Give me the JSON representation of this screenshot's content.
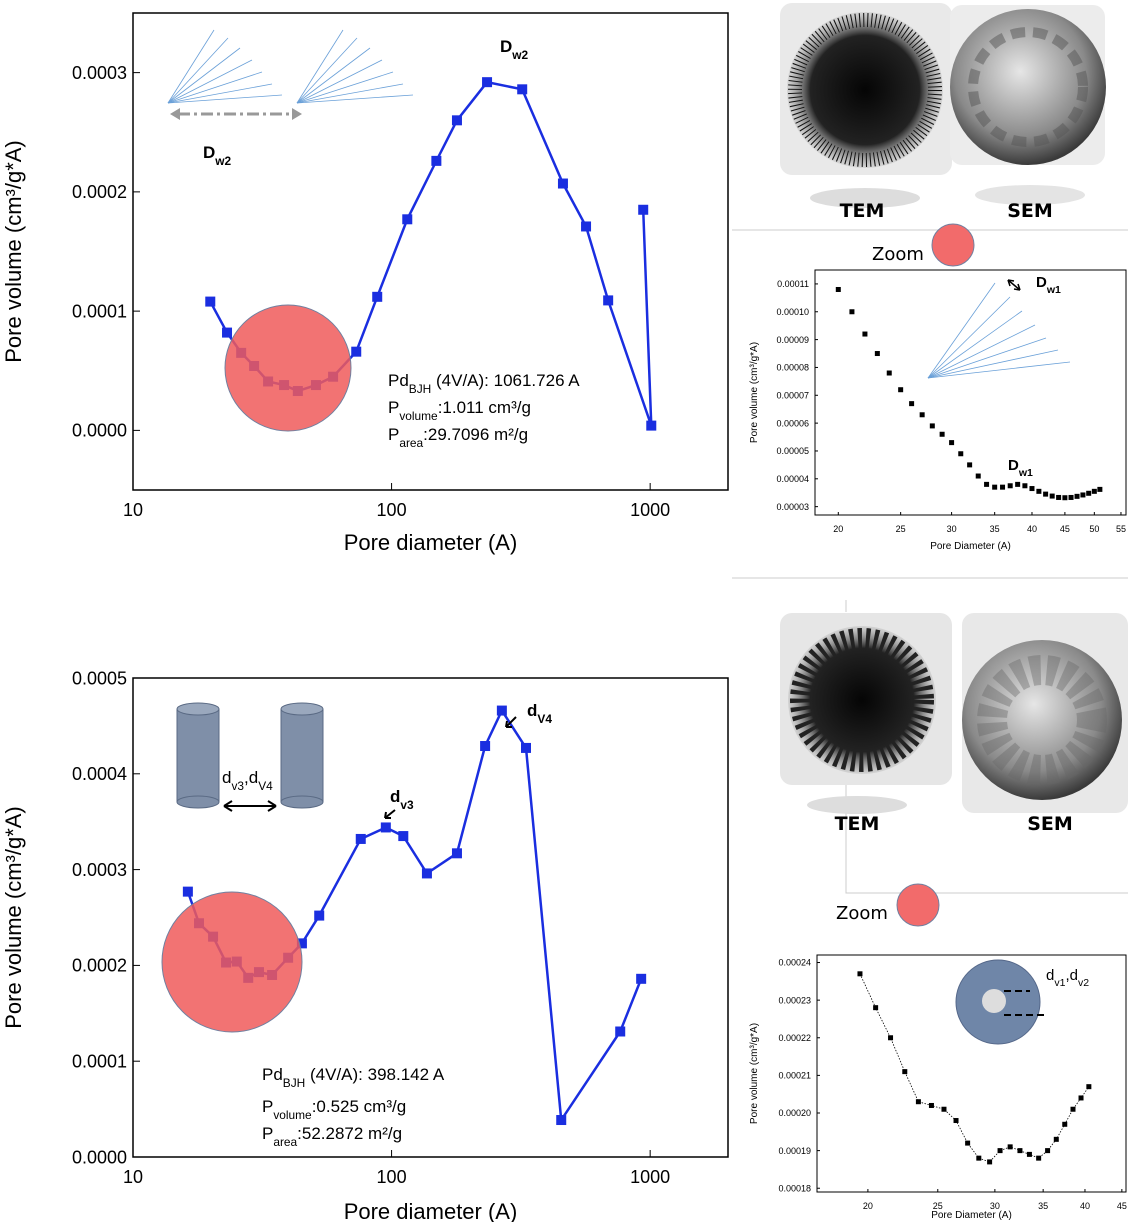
{
  "chart_data": [
    {
      "type": "line",
      "xscale": "log",
      "color": "#1a2ee0",
      "marker": "square",
      "x_label": "Pore diameter (A)",
      "y_label": "Pore volume (cm³/g*A)",
      "x": [
        19.9,
        23.1,
        26.2,
        29.4,
        33.3,
        38.4,
        43.4,
        51,
        59.4,
        73,
        88,
        115,
        149,
        179,
        234,
        320,
        460,
        565,
        688,
        1010,
        940
      ],
      "values": [
        0.000108,
        8.2e-05,
        6.5e-05,
        5.4e-05,
        4.1e-05,
        3.8e-05,
        3.3e-05,
        3.8e-05,
        4.5e-05,
        6.6e-05,
        0.000112,
        0.000177,
        0.000226,
        0.00026,
        0.000292,
        0.000286,
        0.000207,
        0.000171,
        0.000109,
        4e-06,
        0.000185
      ],
      "xlim": [
        10,
        2000
      ],
      "ylim": [
        -5e-05,
        0.00035
      ],
      "xticks": [
        10,
        100,
        1000
      ],
      "yticks": [
        {
          "value": 0,
          "label": "0.0000"
        },
        {
          "value": 0.0001,
          "label": "0.0001"
        },
        {
          "value": 0.0002,
          "label": "0.0002"
        },
        {
          "value": 0.0003,
          "label": "0.0003"
        }
      ],
      "annotations": [
        {
          "bold": true,
          "segments": [
            {
              "t": "D"
            },
            {
              "t": "w2",
              "sub": true
            }
          ]
        },
        {
          "bold": true,
          "segments": [
            {
              "t": "D"
            },
            {
              "t": "w2",
              "sub": true
            }
          ]
        },
        {
          "segments": [
            {
              "t": "Pd"
            },
            {
              "t": "BJH",
              "sub": true
            },
            {
              "t": " (4V/A): 1061.726 A"
            }
          ]
        },
        {
          "segments": [
            {
              "t": "P"
            },
            {
              "t": "volume",
              "sub": true
            },
            {
              "t": ":1.011 cm³/g"
            }
          ]
        },
        {
          "segments": [
            {
              "t": "P"
            },
            {
              "t": "area",
              "sub": true
            },
            {
              "t": ":29.7096 m²/g"
            }
          ]
        }
      ]
    },
    {
      "type": "line",
      "xscale": "log",
      "color": "#1a2ee0",
      "marker": "square",
      "x_label": "Pore diameter (A)",
      "y_label": "Pore volume (cm³/g*A)",
      "x": [
        16.3,
        18,
        20.4,
        22.9,
        25.2,
        27.9,
        30.7,
        34.5,
        39.8,
        45,
        52.5,
        76,
        95,
        111,
        137,
        179,
        230,
        267,
        331,
        453,
        766,
        923
      ],
      "values": [
        0.000277,
        0.000244,
        0.00023,
        0.000203,
        0.000204,
        0.000187,
        0.000193,
        0.00019,
        0.000208,
        0.000223,
        0.000252,
        0.000332,
        0.000344,
        0.000335,
        0.000296,
        0.000317,
        0.000429,
        0.000466,
        0.000427,
        3.86e-05,
        0.000131,
        0.000186
      ],
      "xlim": [
        10,
        2000
      ],
      "ylim": [
        0,
        0.0005
      ],
      "xticks": [
        10,
        100,
        1000
      ],
      "yticks": [
        {
          "value": 0,
          "label": "0.0000"
        },
        {
          "value": 0.0001,
          "label": "0.0001"
        },
        {
          "value": 0.0002,
          "label": "0.0002"
        },
        {
          "value": 0.0003,
          "label": "0.0003"
        },
        {
          "value": 0.0004,
          "label": "0.0004"
        },
        {
          "value": 0.0005,
          "label": "0.0005"
        }
      ],
      "annotations": [
        {
          "segments": [
            {
              "t": "d"
            },
            {
              "t": "v3",
              "sub": true
            },
            {
              "t": ",d"
            },
            {
              "t": "V4",
              "sub": true
            }
          ]
        },
        {
          "bold": true,
          "segments": [
            {
              "t": "d"
            },
            {
              "t": "v3",
              "sub": true
            }
          ]
        },
        {
          "bold": true,
          "segments": [
            {
              "t": "d"
            },
            {
              "t": "V4",
              "sub": true
            }
          ]
        },
        {
          "segments": [
            {
              "t": "Pd"
            },
            {
              "t": "BJH",
              "sub": true
            },
            {
              "t": " (4V/A): 398.142 A"
            }
          ]
        },
        {
          "segments": [
            {
              "t": "P"
            },
            {
              "t": "volume",
              "sub": true
            },
            {
              "t": ":0.525 cm³/g"
            }
          ]
        },
        {
          "segments": [
            {
              "t": "P"
            },
            {
              "t": "area",
              "sub": true
            },
            {
              "t": ":52.2872 m²/g"
            }
          ]
        }
      ]
    },
    {
      "type": "scatter",
      "xscale": "log",
      "color": "#000000",
      "marker": "square",
      "x_label": "Pore Diameter (A)",
      "y_label": "Pore volume (cm³/g*A)",
      "x": [
        20,
        21,
        22,
        23,
        24,
        25,
        26,
        27,
        28,
        29,
        30,
        31,
        32,
        33,
        34,
        35,
        36,
        37,
        38,
        39,
        40,
        41,
        42,
        43,
        44,
        45,
        46,
        47,
        48,
        49,
        50,
        51
      ],
      "values": [
        0.000108,
        0.0001,
        9.2e-05,
        8.5e-05,
        7.8e-05,
        7.2e-05,
        6.7e-05,
        6.3e-05,
        5.9e-05,
        5.6e-05,
        5.3e-05,
        4.9e-05,
        4.5e-05,
        4.1e-05,
        3.8e-05,
        3.7e-05,
        3.7e-05,
        3.75e-05,
        3.8e-05,
        3.75e-05,
        3.65e-05,
        3.55e-05,
        3.45e-05,
        3.38e-05,
        3.33e-05,
        3.32e-05,
        3.33e-05,
        3.37e-05,
        3.42e-05,
        3.48e-05,
        3.55e-05,
        3.62e-05
      ],
      "xlim": [
        18.4,
        56
      ],
      "ylim": [
        2.7e-05,
        0.000115
      ],
      "xticks": [
        20,
        25,
        30,
        35,
        40,
        45,
        50,
        55
      ],
      "yticks": [
        {
          "value": 3e-05,
          "label": "0.00003"
        },
        {
          "value": 4e-05,
          "label": "0.00004"
        },
        {
          "value": 5e-05,
          "label": "0.00005"
        },
        {
          "value": 6e-05,
          "label": "0.00006"
        },
        {
          "value": 7e-05,
          "label": "0.00007"
        },
        {
          "value": 8e-05,
          "label": "0.00008"
        },
        {
          "value": 9e-05,
          "label": "0.00009"
        },
        {
          "value": 0.0001,
          "label": "0.00010"
        },
        {
          "value": 0.00011,
          "label": "0.00011"
        }
      ],
      "annotations": [
        {
          "bold": true,
          "segments": [
            {
              "t": "D"
            },
            {
              "t": "w1",
              "sub": true
            }
          ]
        },
        {
          "bold": true,
          "segments": [
            {
              "t": "D"
            },
            {
              "t": "w1",
              "sub": true
            }
          ]
        }
      ]
    },
    {
      "type": "line",
      "xscale": "log",
      "color": "#000000",
      "marker": "square",
      "x_label": "Pore Diameter (A)",
      "y_label": "Pore volume (cm³/g*A)",
      "x": [
        19.5,
        20.5,
        21.5,
        22.5,
        23.5,
        24.5,
        25.5,
        26.5,
        27.5,
        28.5,
        29.5,
        30.5,
        31.5,
        32.5,
        33.5,
        34.5,
        35.5,
        36.5,
        37.5,
        38.5,
        39.5,
        40.5
      ],
      "values": [
        0.000237,
        0.000228,
        0.00022,
        0.000211,
        0.000203,
        0.000202,
        0.000201,
        0.000198,
        0.000192,
        0.000188,
        0.000187,
        0.00019,
        0.000191,
        0.00019,
        0.000189,
        0.000188,
        0.00019,
        0.000193,
        0.000197,
        0.000201,
        0.000204,
        0.000207
      ],
      "xlim": [
        17,
        45.6
      ],
      "ylim": [
        0.000179,
        0.000242
      ],
      "xticks": [
        20,
        25,
        30,
        35,
        40,
        45
      ],
      "yticks": [
        {
          "value": 0.00018,
          "label": "0.00018"
        },
        {
          "value": 0.00019,
          "label": "0.00019"
        },
        {
          "value": 0.0002,
          "label": "0.00020"
        },
        {
          "value": 0.00021,
          "label": "0.00021"
        },
        {
          "value": 0.00022,
          "label": "0.00022"
        },
        {
          "value": 0.00023,
          "label": "0.00023"
        },
        {
          "value": 0.00024,
          "label": "0.00024"
        }
      ],
      "annotations": [
        {
          "segments": [
            {
              "t": "d"
            },
            {
              "t": "v1",
              "sub": true
            },
            {
              "t": ",d"
            },
            {
              "t": "v2",
              "sub": true
            }
          ]
        }
      ]
    }
  ],
  "panels": {
    "top": {
      "tem": "TEM",
      "sem": "SEM",
      "zoom": "Zoom"
    },
    "bottom": {
      "tem": "TEM",
      "sem": "SEM",
      "zoom": "Zoom"
    }
  }
}
